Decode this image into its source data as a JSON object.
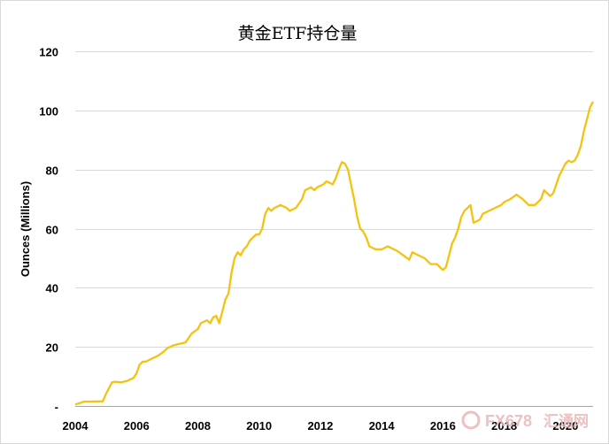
{
  "chart_data": {
    "type": "line",
    "title": "黄金ETF持仓量",
    "ylabel": "Ounces (Millions)",
    "xlabel": "",
    "xlim": [
      2004.0,
      2020.9
    ],
    "ylim": [
      0,
      120
    ],
    "x_ticks": [
      2004,
      2006,
      2008,
      2010,
      2012,
      2014,
      2016,
      2018,
      2020
    ],
    "y_ticks": [
      0,
      20,
      40,
      60,
      80,
      100,
      120
    ],
    "y_tick_labels": [
      "-",
      "20",
      "40",
      "60",
      "80",
      "100",
      "120"
    ],
    "grid": "horizontal",
    "legend": "none",
    "series": [
      {
        "color": "#f5c211",
        "x": [
          2004.0,
          2004.3,
          2004.5,
          2004.9,
          2005.0,
          2005.1,
          2005.2,
          2005.3,
          2005.5,
          2005.7,
          2005.9,
          2006.0,
          2006.1,
          2006.2,
          2006.3,
          2006.5,
          2006.7,
          2006.9,
          2007.0,
          2007.2,
          2007.4,
          2007.6,
          2007.8,
          2008.0,
          2008.1,
          2008.3,
          2008.4,
          2008.5,
          2008.6,
          2008.7,
          2008.8,
          2008.9,
          2009.0,
          2009.1,
          2009.2,
          2009.3,
          2009.4,
          2009.5,
          2009.6,
          2009.7,
          2009.8,
          2009.9,
          2010.0,
          2010.1,
          2010.2,
          2010.3,
          2010.4,
          2010.5,
          2010.7,
          2010.9,
          2011.0,
          2011.2,
          2011.4,
          2011.5,
          2011.7,
          2011.8,
          2011.9,
          2012.1,
          2012.2,
          2012.4,
          2012.5,
          2012.6,
          2012.7,
          2012.8,
          2012.9,
          2013.0,
          2013.1,
          2013.2,
          2013.3,
          2013.4,
          2013.5,
          2013.6,
          2013.8,
          2014.0,
          2014.2,
          2014.3,
          2014.5,
          2014.7,
          2014.9,
          2015.0,
          2015.2,
          2015.4,
          2015.5,
          2015.6,
          2015.8,
          2015.9,
          2016.0,
          2016.1,
          2016.2,
          2016.3,
          2016.4,
          2016.5,
          2016.6,
          2016.7,
          2016.8,
          2016.9,
          2017.0,
          2017.2,
          2017.3,
          2017.5,
          2017.7,
          2017.9,
          2018.0,
          2018.2,
          2018.4,
          2018.6,
          2018.8,
          2019.0,
          2019.2,
          2019.3,
          2019.4,
          2019.5,
          2019.6,
          2019.7,
          2019.8,
          2019.9,
          2020.0,
          2020.1,
          2020.2,
          2020.3,
          2020.4,
          2020.5,
          2020.6,
          2020.7,
          2020.8,
          2020.9
        ],
        "y": [
          0.5,
          1.5,
          1.5,
          1.6,
          4.0,
          6.0,
          8.0,
          8.2,
          8.0,
          8.5,
          9.5,
          11.0,
          14.0,
          15.0,
          15.0,
          16.0,
          17.0,
          18.5,
          19.5,
          20.5,
          21.0,
          21.5,
          24.5,
          26.0,
          28.0,
          29.0,
          28.0,
          30.0,
          30.5,
          28.0,
          32.0,
          36.0,
          38.0,
          45.0,
          50.0,
          52.0,
          51.0,
          53.0,
          54.0,
          56.0,
          57.0,
          58.0,
          58.0,
          60.0,
          65.0,
          67.0,
          66.0,
          67.0,
          68.0,
          67.0,
          66.0,
          67.0,
          70.0,
          73.0,
          74.0,
          73.0,
          74.0,
          75.0,
          76.0,
          75.0,
          77.0,
          80.0,
          82.5,
          82.0,
          80.0,
          75.0,
          70.0,
          64.0,
          60.0,
          59.0,
          57.0,
          54.0,
          53.0,
          53.0,
          54.0,
          53.5,
          52.5,
          51.0,
          49.5,
          52.0,
          51.0,
          50.0,
          49.0,
          48.0,
          48.0,
          47.0,
          46.0,
          47.0,
          51.0,
          55.0,
          57.0,
          60.0,
          64.0,
          66.0,
          67.0,
          68.0,
          62.0,
          63.0,
          65.0,
          66.0,
          67.0,
          68.0,
          69.0,
          70.0,
          71.5,
          70.0,
          68.0,
          68.0,
          70.0,
          73.0,
          72.0,
          71.0,
          72.0,
          75.0,
          78.0,
          80.0,
          82.0,
          83.0,
          82.5,
          83.0,
          85.0,
          88.0,
          93.0,
          97.0,
          101.0,
          103.0
        ]
      }
    ]
  },
  "watermark": {
    "text": "FX678",
    "text_cn": "汇通网"
  }
}
